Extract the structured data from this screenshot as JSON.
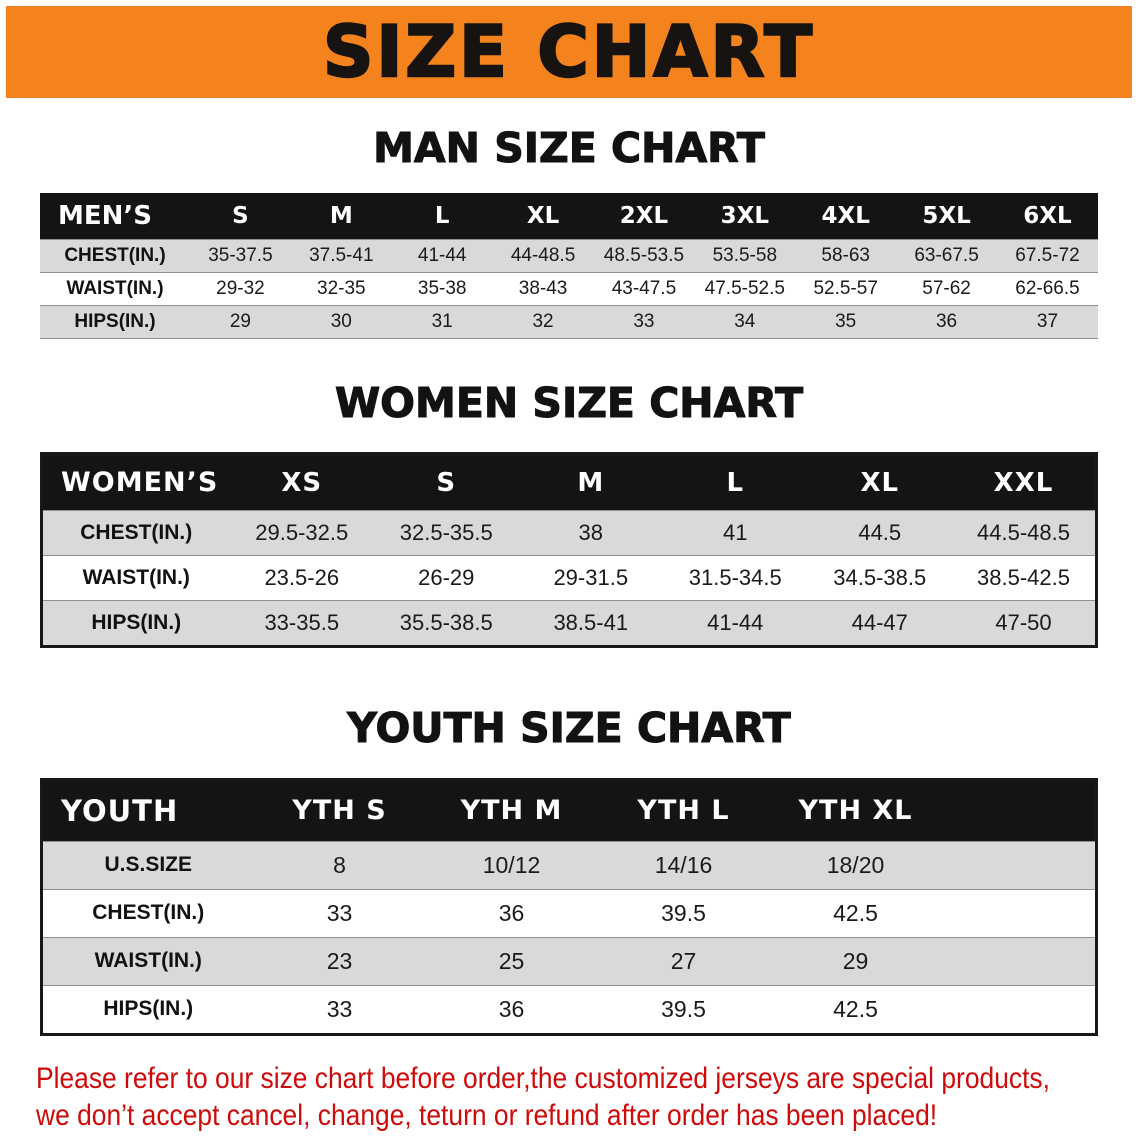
{
  "banner": {
    "title": "SIZE CHART",
    "bg_color": "#f4831d",
    "text_color": "#161310"
  },
  "sections": [
    {
      "heading": "MAN SIZE CHART",
      "table": {
        "corner_label": "MEN’S",
        "columns": [
          "S",
          "M",
          "L",
          "XL",
          "2XL",
          "3XL",
          "4XL",
          "5XL",
          "6XL"
        ],
        "rows": [
          {
            "label": "CHEST(IN.)",
            "values": [
              "35-37.5",
              "37.5-41",
              "41-44",
              "44-48.5",
              "48.5-53.5",
              "53.5-58",
              "58-63",
              "63-67.5",
              "67.5-72"
            ]
          },
          {
            "label": "WAIST(IN.)",
            "values": [
              "29-32",
              "32-35",
              "35-38",
              "38-43",
              "43-47.5",
              "47.5-52.5",
              "52.5-57",
              "57-62",
              "62-66.5"
            ]
          },
          {
            "label": "HIPS(IN.)",
            "values": [
              "29",
              "30",
              "31",
              "32",
              "33",
              "34",
              "35",
              "36",
              "37"
            ]
          }
        ]
      }
    },
    {
      "heading": "WOMEN SIZE CHART",
      "table": {
        "corner_label": "WOMEN’S",
        "columns": [
          "XS",
          "S",
          "M",
          "L",
          "XL",
          "XXL"
        ],
        "rows": [
          {
            "label": "CHEST(IN.)",
            "values": [
              "29.5-32.5",
              "32.5-35.5",
              "38",
              "41",
              "44.5",
              "44.5-48.5"
            ]
          },
          {
            "label": "WAIST(IN.)",
            "values": [
              "23.5-26",
              "26-29",
              "29-31.5",
              "31.5-34.5",
              "34.5-38.5",
              "38.5-42.5"
            ]
          },
          {
            "label": "HIPS(IN.)",
            "values": [
              "33-35.5",
              "35.5-38.5",
              "38.5-41",
              "41-44",
              "44-47",
              "47-50"
            ]
          }
        ]
      }
    },
    {
      "heading": "YOUTH SIZE CHART",
      "table": {
        "corner_label": "YOUTH",
        "columns": [
          "YTH S",
          "YTH M",
          "YTH L",
          "YTH XL"
        ],
        "rows": [
          {
            "label": "U.S.SIZE",
            "values": [
              "8",
              "10/12",
              "14/16",
              "18/20"
            ]
          },
          {
            "label": "CHEST(IN.)",
            "values": [
              "33",
              "36",
              "39.5",
              "42.5"
            ]
          },
          {
            "label": "WAIST(IN.)",
            "values": [
              "23",
              "25",
              "27",
              "29"
            ]
          },
          {
            "label": "HIPS(IN.)",
            "values": [
              "33",
              "36",
              "39.5",
              "42.5"
            ]
          }
        ]
      }
    }
  ],
  "disclaimer": {
    "color": "#cf0a0a",
    "lines": [
      "Please refer to our size chart before order,the customized jerseys are special products,",
      "we don’t accept cancel, change, teturn or refund after order has been placed!"
    ]
  }
}
